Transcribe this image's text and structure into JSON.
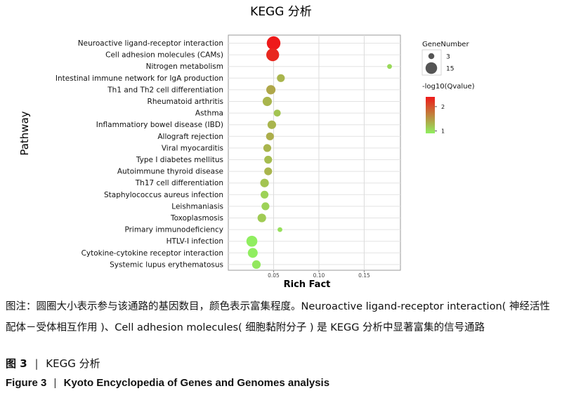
{
  "chart_data": {
    "type": "scatter",
    "title": "KEGG 分析",
    "xlabel": "Rich Fact",
    "ylabel": "Pathway",
    "xlim": [
      0.0,
      0.19
    ],
    "xticks": [
      "0.05",
      "0.10",
      "0.15"
    ],
    "grid": true,
    "legend_position": "right",
    "categories": [
      "Neuroactive ligand-receptor interaction",
      "Cell adhesion molecules (CAMs)",
      "Nitrogen metabolism",
      "Intestinal immune network for IgA production",
      "Th1 and Th2 cell differentiation",
      "Rheumatoid arthritis",
      "Asthma",
      "Inflammatiory bowel disease (IBD)",
      "Allograft rejection",
      "Viral myocarditis",
      "Type I diabetes mellitus",
      "Autoimmune thyroid disease",
      "Th17 cell differentiation",
      "Staphylococcus aureus infection",
      "Leishmaniasis",
      "Toxoplasmosis",
      "Primary immunodeficiency",
      "HTLV-I infection",
      "Cytokine-cytokine receptor interaction",
      "Systemic lupus erythematosus"
    ],
    "rich_factor": [
      0.05,
      0.049,
      0.178,
      0.058,
      0.047,
      0.043,
      0.054,
      0.048,
      0.046,
      0.043,
      0.044,
      0.044,
      0.04,
      0.04,
      0.041,
      0.037,
      0.057,
      0.026,
      0.027,
      0.031
    ],
    "gene_number": [
      15,
      13,
      1,
      4,
      6,
      6,
      3,
      5,
      4,
      4,
      4,
      4,
      5,
      4,
      4,
      5,
      1,
      9,
      7,
      5
    ],
    "neg_log10_qvalue": [
      2.4,
      2.3,
      1.05,
      1.3,
      1.4,
      1.3,
      1.2,
      1.3,
      1.35,
      1.3,
      1.25,
      1.3,
      1.2,
      1.1,
      1.1,
      1.15,
      1.0,
      0.9,
      0.9,
      0.95
    ],
    "size_legend": {
      "title": "GeneNumber",
      "labels": [
        "3",
        "15"
      ],
      "values": [
        3,
        15
      ]
    },
    "color_legend": {
      "title": "-log10(Qvalue)",
      "labels": [
        "2",
        "1"
      ],
      "values": [
        2,
        1
      ],
      "low_color": "#90ee60",
      "high_color": "#ee1a1a"
    }
  },
  "caption": {
    "note": "图注：圆圈大小表示参与该通路的基因数目，颜色表示富集程度。Neuroactive ligand-receptor interaction( 神经活性配体－受体相互作用 )、Cell adhesion molecules( 细胞黏附分子 ) 是 KEGG 分析中显著富集的信号通路",
    "cn_fig": "图 3",
    "cn_title": "KEGG 分析",
    "separator": "|",
    "en_fig": "Figure 3",
    "en_title": "Kyoto Encyclopedia of Genes and Genomes analysis"
  }
}
